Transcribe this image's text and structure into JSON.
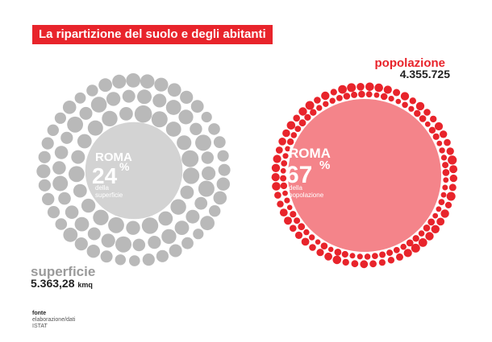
{
  "title": "La ripartizione del suolo e degli abitanti",
  "colors": {
    "banner": "#e8242b",
    "grey_big": "#d3d3d3",
    "grey_small": "#b9b9b9",
    "red_big": "#f4848a",
    "red_small": "#e8242b",
    "white": "#ffffff"
  },
  "chart_data": [
    {
      "type": "bubble",
      "series": [
        {
          "name": "ROMA",
          "value": 24,
          "unit": "%"
        },
        {
          "name": "",
          "value": 76,
          "unit": "%"
        }
      ],
      "total_label": "superficie",
      "total_value": "5.363,28",
      "total_unit": "kmq",
      "center_city": "ROMA",
      "center_pct": "24",
      "pct_sign": "%",
      "center_sub1": "della",
      "center_sub2": "superficie"
    },
    {
      "type": "bubble",
      "series": [
        {
          "name": "ROMA",
          "value": 67,
          "unit": "%"
        },
        {
          "name": "",
          "value": 33,
          "unit": "%"
        }
      ],
      "total_label": "popolazione",
      "total_value": "4.355.725",
      "center_city": "ROMA",
      "center_pct": "67",
      "pct_sign": "%",
      "center_sub1": "della",
      "center_sub2": "popolazione"
    }
  ],
  "source": {
    "title": "fonte",
    "line1": "elaborazione/dati",
    "line2": "ISTAT"
  }
}
